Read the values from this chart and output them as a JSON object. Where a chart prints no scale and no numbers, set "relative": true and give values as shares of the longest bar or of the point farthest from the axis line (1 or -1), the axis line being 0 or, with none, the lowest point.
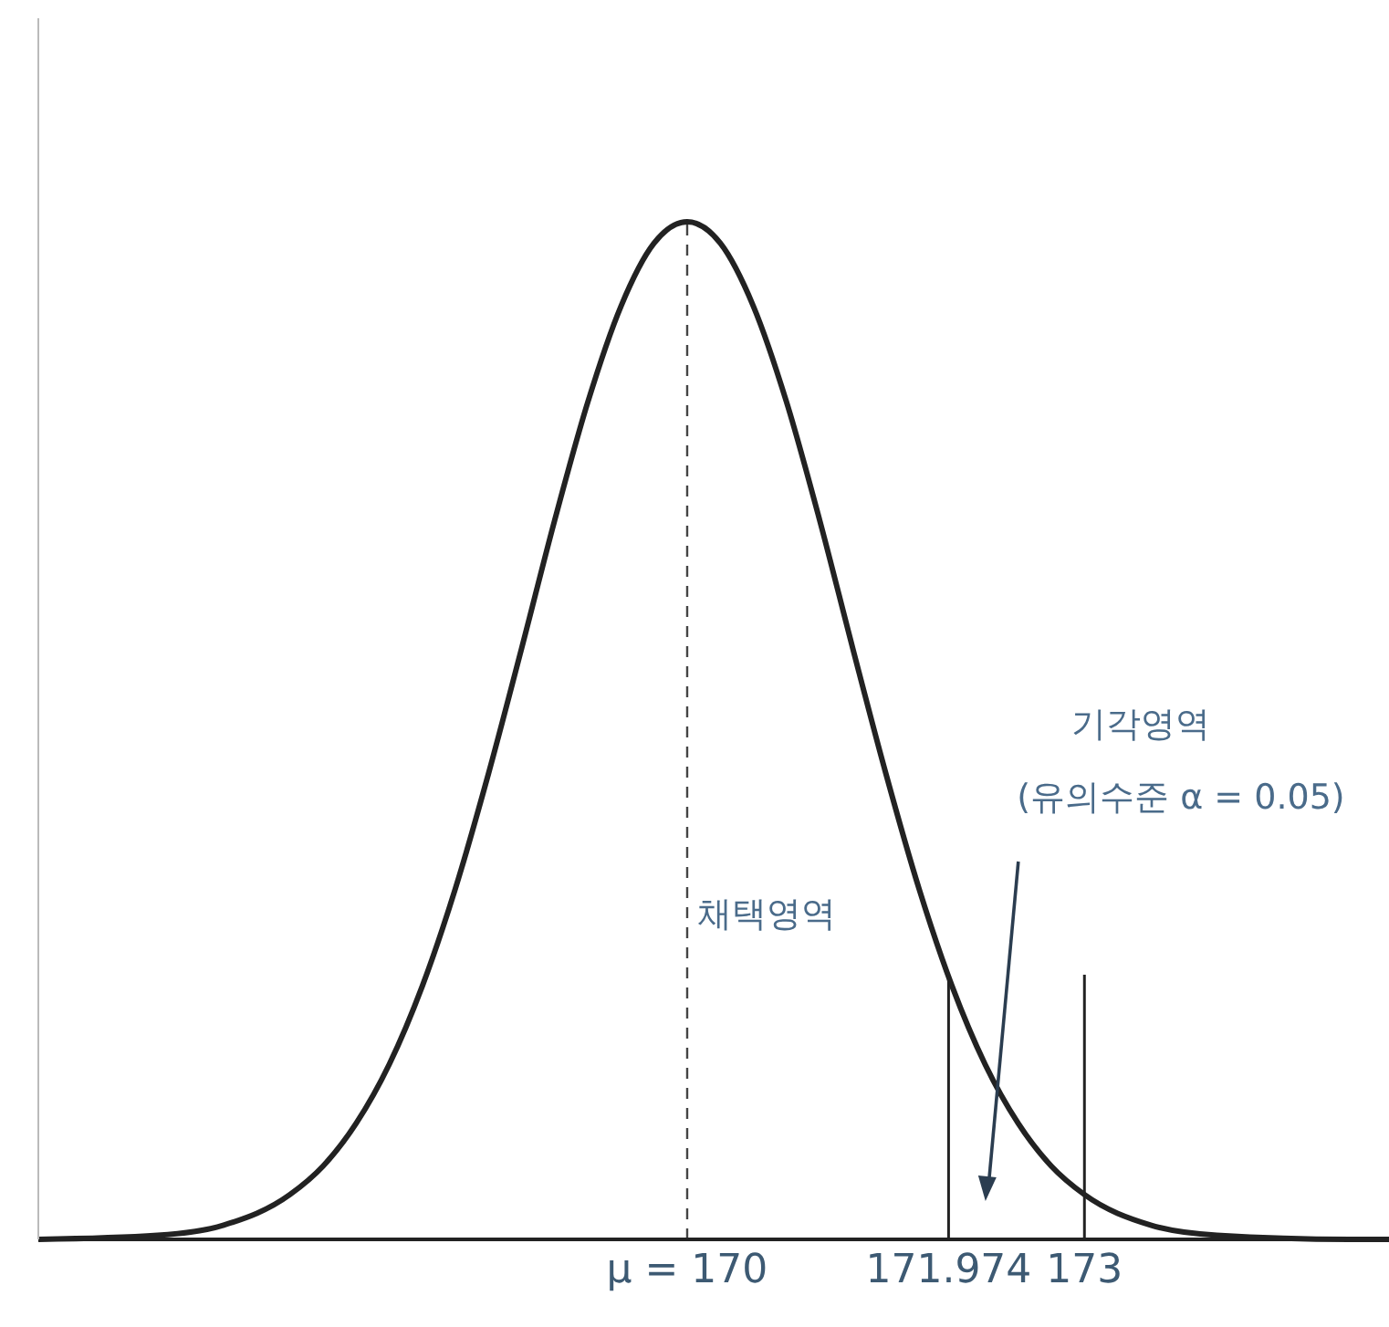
{
  "chart_data": {
    "type": "line",
    "relative": true,
    "xlim": [
      165.1,
      175.3
    ],
    "xticks": [
      {
        "value": 170,
        "label": "μ = 170"
      },
      171.974,
      173
    ],
    "grid": false,
    "legend": false,
    "marker": "none",
    "line_style": "solid",
    "series": [
      {
        "color": "#222222",
        "x": [
          165.1,
          166,
          166.5,
          167,
          167.25,
          167.5,
          167.75,
          168,
          168.25,
          168.5,
          168.75,
          169,
          169.25,
          169.5,
          169.75,
          170,
          170.25,
          170.5,
          170.75,
          171,
          171.25,
          171.5,
          171.75,
          172,
          172.25,
          172.5,
          172.75,
          173,
          173.5,
          174,
          175,
          175.3
        ],
        "values": [
          0,
          0.004,
          0.014,
          0.044,
          0.072,
          0.114,
          0.172,
          0.249,
          0.345,
          0.458,
          0.581,
          0.707,
          0.823,
          0.917,
          0.979,
          1,
          0.979,
          0.917,
          0.823,
          0.707,
          0.581,
          0.458,
          0.345,
          0.249,
          0.172,
          0.114,
          0.072,
          0.044,
          0.014,
          0.004,
          0,
          0
        ]
      },
      {
        "color": "#222222",
        "x": [
          171.974,
          171.974
        ],
        "values": [
          0,
          0.26
        ]
      },
      {
        "color": "#222222",
        "x": [
          173,
          173
        ],
        "values": [
          0,
          0.26
        ]
      }
    ],
    "ref_lines": [
      {
        "axis": "x",
        "value": 170,
        "color": "#444444",
        "line_style": "dashed"
      }
    ],
    "annotations": [
      "채택영역",
      "기각영역",
      "(유의수준 α = 0.05)"
    ]
  }
}
